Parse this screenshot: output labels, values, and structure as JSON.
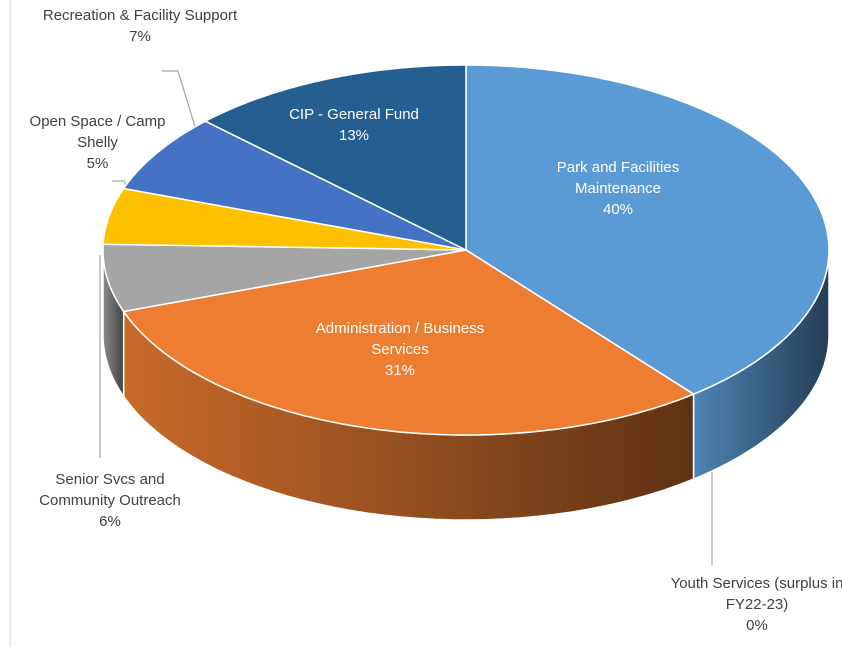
{
  "chart_data": {
    "type": "pie3d",
    "categories": [
      "Park and Facilities Maintenance",
      "Youth Services (surplus in FY22-23)",
      "Administration / Business Services",
      "Senior Svcs and Community Outreach",
      "Open Space / Camp Shelly",
      "Recreation & Facility Support",
      "CIP - General Fund"
    ],
    "values": [
      40,
      0,
      31,
      6,
      5,
      7,
      13
    ],
    "value_labels": [
      "40%",
      "0%",
      "31%",
      "6%",
      "5%",
      "7%",
      "13%"
    ],
    "colors": [
      "#5b9bd5",
      "#264478",
      "#ed7d31",
      "#a5a5a5",
      "#ffc000",
      "#4472c4",
      "#255e91"
    ]
  }
}
